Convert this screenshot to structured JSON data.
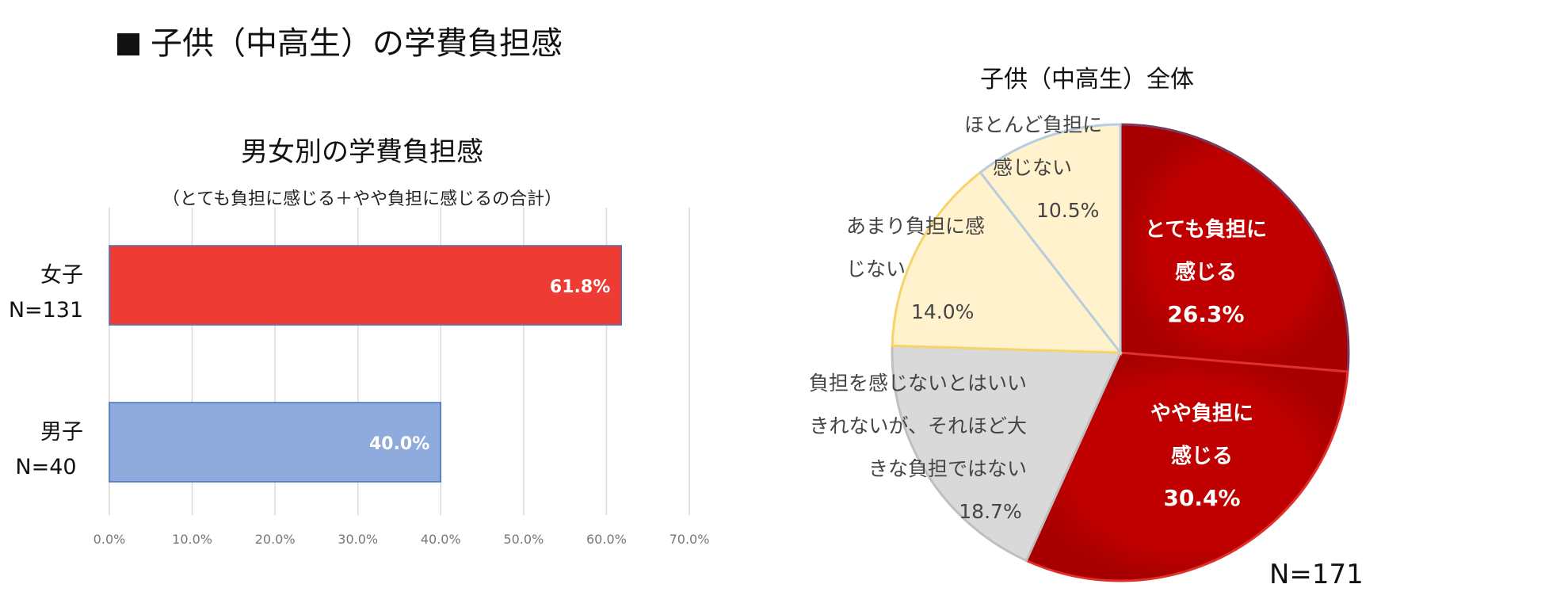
{
  "page_title": "子供（中高生）の学費負担感",
  "colors": {
    "female_bar": "#EE3B33",
    "male_bar": "#8FAADC",
    "pie_very_heavy": "#C00000",
    "pie_somewhat_heavy": "#C00000",
    "pie_neither": "#D9D9D9",
    "pie_not_much": "#FFF2CC",
    "pie_hardly": "#FFF2CC"
  },
  "chart_data": [
    {
      "type": "bar",
      "orientation": "horizontal",
      "title": "男女別の学費負担感",
      "subtitle": "（とても負担に感じる＋やや負担に感じるの合計）",
      "categories": [
        {
          "label": "女子",
          "n": "N=131"
        },
        {
          "label": "男子",
          "n": "N=40"
        }
      ],
      "values": [
        61.8,
        40.0
      ],
      "value_labels": [
        "61.8%",
        "40.0%"
      ],
      "xlim": [
        0,
        70
      ],
      "xticks": [
        "0.0%",
        "10.0%",
        "20.0%",
        "30.0%",
        "40.0%",
        "50.0%",
        "60.0%",
        "70.0%"
      ],
      "grid": true
    },
    {
      "type": "pie",
      "title": "子供（中高生）全体",
      "total": "N=171",
      "slices": [
        {
          "label_lines": [
            "とても負担に",
            "感じる"
          ],
          "value": 26.3,
          "value_label": "26.3%"
        },
        {
          "label_lines": [
            "やや負担に",
            "感じる"
          ],
          "value": 30.4,
          "value_label": "30.4%"
        },
        {
          "label_lines": [
            "負担を感じないとはいい",
            "きれないが、それほど大",
            "きな負担ではない"
          ],
          "value": 18.7,
          "value_label": "18.7%"
        },
        {
          "label_lines": [
            "あまり負担に感",
            "じない"
          ],
          "value": 14.0,
          "value_label": "14.0%"
        },
        {
          "label_lines": [
            "ほとんど負担に",
            "感じない"
          ],
          "value": 10.5,
          "value_label": "10.5%"
        }
      ]
    }
  ]
}
